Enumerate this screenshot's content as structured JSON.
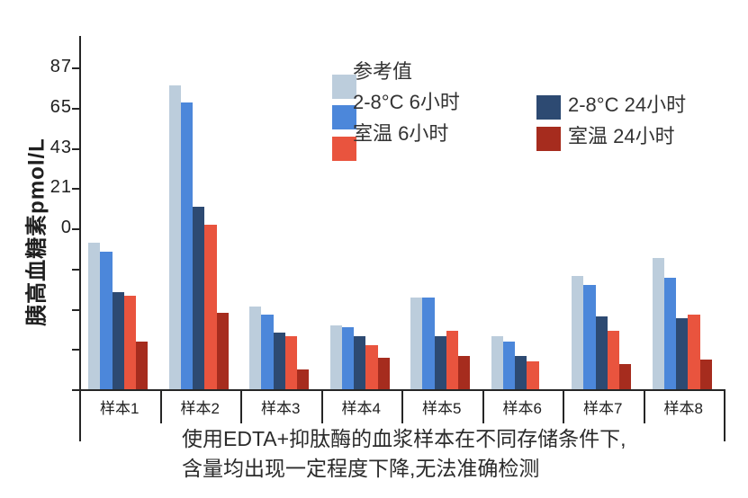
{
  "chart_data": {
    "type": "bar",
    "title": "",
    "ylabel": "胰高血糖素pmol/L",
    "y_axis": {
      "labeled_ticks": [
        "87",
        "65",
        "43",
        "21",
        "0"
      ],
      "labeled_tick_values": [
        87,
        65,
        43,
        21,
        0
      ],
      "unlabeled_ticks_below_zero": 3,
      "units_per_tick": 22,
      "grid": false
    },
    "categories": [
      "样本1",
      "样本2",
      "样本3",
      "样本4",
      "样本5",
      "样本6",
      "样本7",
      "样本8"
    ],
    "series": [
      {
        "name": "参考值",
        "color": "#bccddc",
        "values": [
          80,
          166,
          45,
          35,
          50,
          29,
          62,
          72
        ]
      },
      {
        "name": "2-8°C 6小时",
        "color": "#4c87da",
        "values": [
          75,
          157,
          41,
          34,
          50,
          26,
          57,
          61
        ]
      },
      {
        "name": "2-8°C 24小时",
        "color": "#2d4a72",
        "values": [
          53,
          100,
          31,
          29,
          29,
          18,
          40,
          39
        ]
      },
      {
        "name": "室温 6小时",
        "color": "#e9543e",
        "values": [
          51,
          90,
          29,
          24,
          32,
          15,
          32,
          41
        ]
      },
      {
        "name": "室温 24小时",
        "color": "#a62c1e",
        "values": [
          26,
          42,
          11,
          17,
          18,
          0,
          14,
          16
        ]
      }
    ],
    "bar_group_order": [
      0,
      1,
      2,
      3,
      4
    ],
    "legend_position": "top-right, two columns"
  },
  "legend": {
    "column1_series": [
      0,
      1,
      3
    ],
    "column2_series": [
      2,
      4
    ]
  },
  "caption": {
    "line1": "使用EDTA+抑肽酶的血浆样本在不同存储条件下,",
    "line2": "含量均出现一定程度下降,无法准确检测"
  }
}
